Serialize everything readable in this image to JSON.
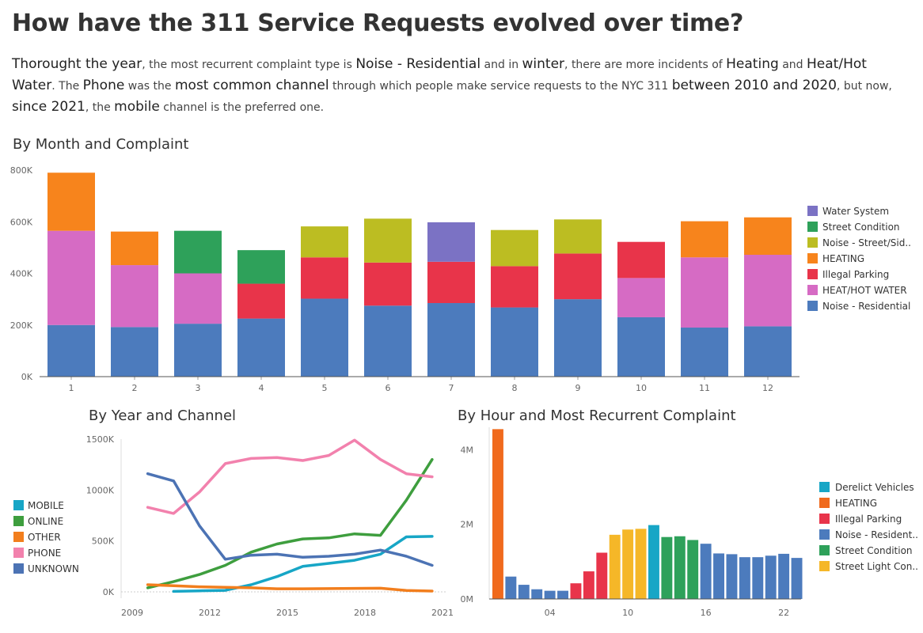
{
  "title": "How have the 311 Service Requests evolved over time?",
  "summary": [
    {
      "t": "Thorought the year",
      "hl": true
    },
    {
      "t": ", the most recurrent complaint type is ",
      "hl": false
    },
    {
      "t": "Noise - Residential",
      "hl": true
    },
    {
      "t": " and in ",
      "hl": false
    },
    {
      "t": "winter",
      "hl": true
    },
    {
      "t": ", there are more incidents of ",
      "hl": false
    },
    {
      "t": "Heating",
      "hl": true
    },
    {
      "t": " and ",
      "hl": false
    },
    {
      "t": "Heat/Hot Water",
      "hl": true
    },
    {
      "t": ". The ",
      "hl": false
    },
    {
      "t": "Phone",
      "hl": true
    },
    {
      "t": " was the ",
      "hl": false
    },
    {
      "t": "most common channel",
      "hl": true
    },
    {
      "t": " through which people make service requests to the NYC 311 ",
      "hl": false
    },
    {
      "t": "between 2010 and 2020",
      "hl": true
    },
    {
      "t": ", but now, ",
      "hl": false
    },
    {
      "t": "since 2021",
      "hl": true
    },
    {
      "t": ", the ",
      "hl": false
    },
    {
      "t": "mobile",
      "hl": true
    },
    {
      "t": " channel is the preferred one.",
      "hl": false
    }
  ],
  "chart_data": [
    {
      "type": "bar",
      "stacked": true,
      "title": "By Month and Complaint",
      "categories": [
        "1",
        "2",
        "3",
        "4",
        "5",
        "6",
        "7",
        "8",
        "9",
        "10",
        "11",
        "12"
      ],
      "ylim": [
        0,
        800000
      ],
      "yticks": [
        0,
        200000,
        400000,
        600000,
        800000
      ],
      "ytick_labels": [
        "0K",
        "200K",
        "400K",
        "600K",
        "800K"
      ],
      "legend_position": "right",
      "legend": [
        {
          "name": "Water System",
          "color": "#7b72c4"
        },
        {
          "name": "Street Condition",
          "color": "#2ea15a"
        },
        {
          "name": "Noise - Street/Sid..",
          "color": "#bcbd22"
        },
        {
          "name": "HEATING",
          "color": "#f7841c"
        },
        {
          "name": "Illegal Parking",
          "color": "#e8344a"
        },
        {
          "name": "HEAT/HOT WATER",
          "color": "#d66bc4"
        },
        {
          "name": "Noise - Residential",
          "color": "#4c7bbd"
        }
      ],
      "stacks": [
        [
          {
            "s": "Noise - Residential",
            "v": 200000
          },
          {
            "s": "HEAT/HOT WATER",
            "v": 365000
          },
          {
            "s": "HEATING",
            "v": 225000
          }
        ],
        [
          {
            "s": "Noise - Residential",
            "v": 192000
          },
          {
            "s": "HEAT/HOT WATER",
            "v": 240000
          },
          {
            "s": "HEATING",
            "v": 130000
          }
        ],
        [
          {
            "s": "Noise - Residential",
            "v": 205000
          },
          {
            "s": "HEAT/HOT WATER",
            "v": 195000
          },
          {
            "s": "Street Condition",
            "v": 165000
          }
        ],
        [
          {
            "s": "Noise - Residential",
            "v": 225000
          },
          {
            "s": "Illegal Parking",
            "v": 135000
          },
          {
            "s": "Street Condition",
            "v": 130000
          }
        ],
        [
          {
            "s": "Noise - Residential",
            "v": 302000
          },
          {
            "s": "Illegal Parking",
            "v": 160000
          },
          {
            "s": "Noise - Street/Sid..",
            "v": 120000
          }
        ],
        [
          {
            "s": "Noise - Residential",
            "v": 275000
          },
          {
            "s": "Illegal Parking",
            "v": 167000
          },
          {
            "s": "Noise - Street/Sid..",
            "v": 170000
          }
        ],
        [
          {
            "s": "Noise - Residential",
            "v": 285000
          },
          {
            "s": "Illegal Parking",
            "v": 160000
          },
          {
            "s": "Water System",
            "v": 153000
          }
        ],
        [
          {
            "s": "Noise - Residential",
            "v": 268000
          },
          {
            "s": "Illegal Parking",
            "v": 160000
          },
          {
            "s": "Noise - Street/Sid..",
            "v": 140000
          }
        ],
        [
          {
            "s": "Noise - Residential",
            "v": 300000
          },
          {
            "s": "Illegal Parking",
            "v": 177000
          },
          {
            "s": "Noise - Street/Sid..",
            "v": 132000
          }
        ],
        [
          {
            "s": "Noise - Residential",
            "v": 230000
          },
          {
            "s": "HEAT/HOT WATER",
            "v": 152000
          },
          {
            "s": "Illegal Parking",
            "v": 140000
          }
        ],
        [
          {
            "s": "Noise - Residential",
            "v": 190000
          },
          {
            "s": "HEAT/HOT WATER",
            "v": 272000
          },
          {
            "s": "HEATING",
            "v": 140000
          }
        ],
        [
          {
            "s": "Noise - Residential",
            "v": 195000
          },
          {
            "s": "HEAT/HOT WATER",
            "v": 277000
          },
          {
            "s": "HEATING",
            "v": 145000
          }
        ]
      ]
    },
    {
      "type": "line",
      "title": "By Year and Channel",
      "x": [
        2009,
        2010,
        2011,
        2012,
        2013,
        2014,
        2015,
        2016,
        2017,
        2018,
        2019,
        2020,
        2021
      ],
      "xticks": [
        2009,
        2012,
        2015,
        2018,
        2021
      ],
      "xlim": [
        2009,
        2021
      ],
      "ylim": [
        0,
        1500000
      ],
      "yticks": [
        0,
        500000,
        1000000,
        1500000
      ],
      "ytick_labels": [
        "0K",
        "500K",
        "1000K",
        "1500K"
      ],
      "legend_position": "left",
      "series": [
        {
          "name": "MOBILE",
          "color": "#17a6c6",
          "values": [
            null,
            5000,
            10000,
            15000,
            70000,
            150000,
            250000,
            280000,
            310000,
            370000,
            540000,
            545000,
            null
          ]
        },
        {
          "name": "ONLINE",
          "color": "#3e9e3e",
          "values": [
            40000,
            100000,
            170000,
            260000,
            390000,
            470000,
            520000,
            530000,
            570000,
            555000,
            900000,
            1300000,
            null
          ]
        },
        {
          "name": "OTHER",
          "color": "#f27e1d",
          "values": [
            70000,
            60000,
            50000,
            45000,
            40000,
            30000,
            30000,
            32000,
            34000,
            36000,
            14000,
            8000,
            null
          ]
        },
        {
          "name": "PHONE",
          "color": "#f281ad",
          "values": [
            830000,
            770000,
            980000,
            1260000,
            1310000,
            1320000,
            1290000,
            1340000,
            1490000,
            1300000,
            1160000,
            1130000,
            null
          ]
        },
        {
          "name": "UNKNOWN",
          "color": "#4c73b4",
          "values": [
            1160000,
            1090000,
            650000,
            320000,
            360000,
            370000,
            340000,
            350000,
            370000,
            410000,
            350000,
            260000,
            null
          ]
        }
      ]
    },
    {
      "type": "bar",
      "title": "By Hour and Most Recurrent Complaint",
      "categories": [
        0,
        1,
        2,
        3,
        4,
        5,
        6,
        7,
        8,
        9,
        10,
        11,
        12,
        13,
        14,
        15,
        16,
        17,
        18,
        19,
        20,
        21,
        22,
        23
      ],
      "xticks": [
        4,
        10,
        16,
        22
      ],
      "xtick_labels": [
        "04",
        "10",
        "16",
        "22"
      ],
      "ylim": [
        0,
        4600000
      ],
      "yticks": [
        0,
        2000000,
        4000000
      ],
      "ytick_labels": [
        "0M",
        "2M",
        "4M"
      ],
      "legend_position": "right",
      "legend": [
        {
          "name": "Derelict Vehicles",
          "color": "#17a6c6"
        },
        {
          "name": "HEATING",
          "color": "#f06a1d"
        },
        {
          "name": "Illegal Parking",
          "color": "#e8344a"
        },
        {
          "name": "Noise - Resident..",
          "color": "#4c7bbd"
        },
        {
          "name": "Street Condition",
          "color": "#2ea15a"
        },
        {
          "name": "Street Light Con..",
          "color": "#f5b728"
        }
      ],
      "values": [
        4550000,
        600000,
        380000,
        260000,
        220000,
        220000,
        420000,
        740000,
        1240000,
        1720000,
        1860000,
        1880000,
        1980000,
        1660000,
        1680000,
        1580000,
        1480000,
        1220000,
        1200000,
        1120000,
        1120000,
        1160000,
        1210000,
        1100000
      ],
      "series_by_bar": [
        "HEATING",
        "Noise - Resident..",
        "Noise - Resident..",
        "Noise - Resident..",
        "Noise - Resident..",
        "Noise - Resident..",
        "Illegal Parking",
        "Illegal Parking",
        "Illegal Parking",
        "Street Light Con..",
        "Street Light Con..",
        "Street Light Con..",
        "Derelict Vehicles",
        "Street Condition",
        "Street Condition",
        "Street Condition",
        "Noise - Resident..",
        "Noise - Resident..",
        "Noise - Resident..",
        "Noise - Resident..",
        "Noise - Resident..",
        "Noise - Resident..",
        "Noise - Resident..",
        "Noise - Resident.."
      ]
    }
  ]
}
